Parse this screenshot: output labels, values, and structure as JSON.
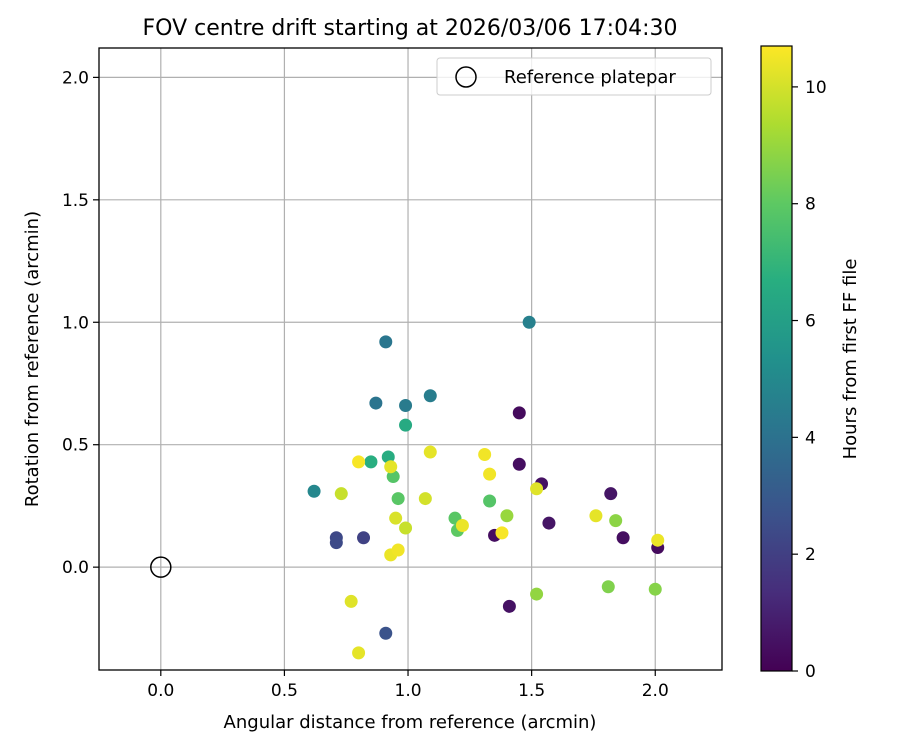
{
  "chart_data": {
    "type": "scatter",
    "title": "FOV centre drift starting at 2026/03/06 17:04:30",
    "xlabel": "Angular distance from reference (arcmin)",
    "ylabel": "Rotation from reference (arcmin)",
    "xlim": [
      -0.25,
      2.27
    ],
    "ylim": [
      -0.42,
      2.12
    ],
    "xticks": [
      "0.0",
      "0.5",
      "1.0",
      "1.5",
      "2.0"
    ],
    "yticks": [
      "0.0",
      "0.5",
      "1.0",
      "1.5",
      "2.0"
    ],
    "grid": true,
    "legend": {
      "position": "top-right",
      "entries": [
        "Reference platepar"
      ]
    },
    "reference_point": {
      "x": 0.0,
      "y": 0.0,
      "label": "Reference platepar"
    },
    "colorbar": {
      "label": "Hours from first FF file",
      "range": [
        0,
        10.7
      ],
      "ticks": [
        "0",
        "2",
        "4",
        "6",
        "8",
        "10"
      ],
      "colormap": "viridis"
    },
    "points": [
      {
        "x": 1.45,
        "y": 0.63,
        "h": 0.3
      },
      {
        "x": 1.45,
        "y": 0.42,
        "h": 0.4
      },
      {
        "x": 1.54,
        "y": 0.34,
        "h": 0.5
      },
      {
        "x": 1.57,
        "y": 0.18,
        "h": 0.6
      },
      {
        "x": 1.35,
        "y": 0.13,
        "h": 0.4
      },
      {
        "x": 1.41,
        "y": -0.16,
        "h": 0.5
      },
      {
        "x": 1.82,
        "y": 0.3,
        "h": 0.6
      },
      {
        "x": 1.87,
        "y": 0.12,
        "h": 0.4
      },
      {
        "x": 2.01,
        "y": 0.08,
        "h": 0.3
      },
      {
        "x": 0.71,
        "y": 0.12,
        "h": 2.3
      },
      {
        "x": 0.71,
        "y": 0.1,
        "h": 2.4
      },
      {
        "x": 0.82,
        "y": 0.12,
        "h": 2.1
      },
      {
        "x": 0.91,
        "y": -0.27,
        "h": 2.7
      },
      {
        "x": 0.62,
        "y": 0.31,
        "h": 4.9
      },
      {
        "x": 0.87,
        "y": 0.67,
        "h": 4.1
      },
      {
        "x": 0.91,
        "y": 0.92,
        "h": 4.2
      },
      {
        "x": 0.99,
        "y": 0.66,
        "h": 4.4
      },
      {
        "x": 1.09,
        "y": 0.7,
        "h": 4.5
      },
      {
        "x": 1.49,
        "y": 1.0,
        "h": 4.6
      },
      {
        "x": 0.99,
        "y": 0.58,
        "h": 6.5
      },
      {
        "x": 0.85,
        "y": 0.43,
        "h": 6.7
      },
      {
        "x": 0.92,
        "y": 0.45,
        "h": 6.6
      },
      {
        "x": 0.94,
        "y": 0.37,
        "h": 7.8
      },
      {
        "x": 0.96,
        "y": 0.28,
        "h": 7.9
      },
      {
        "x": 1.19,
        "y": 0.2,
        "h": 7.9
      },
      {
        "x": 1.2,
        "y": 0.15,
        "h": 8.0
      },
      {
        "x": 1.33,
        "y": 0.27,
        "h": 7.8
      },
      {
        "x": 1.4,
        "y": 0.21,
        "h": 9.0
      },
      {
        "x": 1.52,
        "y": -0.11,
        "h": 8.9
      },
      {
        "x": 1.81,
        "y": -0.08,
        "h": 8.6
      },
      {
        "x": 1.84,
        "y": 0.19,
        "h": 8.8
      },
      {
        "x": 2.0,
        "y": -0.09,
        "h": 8.7
      },
      {
        "x": 0.73,
        "y": 0.3,
        "h": 9.8
      },
      {
        "x": 0.8,
        "y": 0.43,
        "h": 10.6
      },
      {
        "x": 0.93,
        "y": 0.41,
        "h": 10.3
      },
      {
        "x": 0.95,
        "y": 0.2,
        "h": 10.1
      },
      {
        "x": 0.99,
        "y": 0.16,
        "h": 9.8
      },
      {
        "x": 0.93,
        "y": 0.05,
        "h": 10.4
      },
      {
        "x": 0.96,
        "y": 0.07,
        "h": 10.5
      },
      {
        "x": 0.77,
        "y": -0.14,
        "h": 10.2
      },
      {
        "x": 0.8,
        "y": -0.35,
        "h": 10.3
      },
      {
        "x": 1.07,
        "y": 0.28,
        "h": 10.0
      },
      {
        "x": 1.09,
        "y": 0.47,
        "h": 10.3
      },
      {
        "x": 1.22,
        "y": 0.17,
        "h": 10.4
      },
      {
        "x": 1.31,
        "y": 0.46,
        "h": 10.5
      },
      {
        "x": 1.33,
        "y": 0.38,
        "h": 10.5
      },
      {
        "x": 1.38,
        "y": 0.14,
        "h": 10.6
      },
      {
        "x": 1.52,
        "y": 0.32,
        "h": 10.2
      },
      {
        "x": 1.76,
        "y": 0.21,
        "h": 10.3
      },
      {
        "x": 2.01,
        "y": 0.11,
        "h": 10.4
      }
    ]
  }
}
